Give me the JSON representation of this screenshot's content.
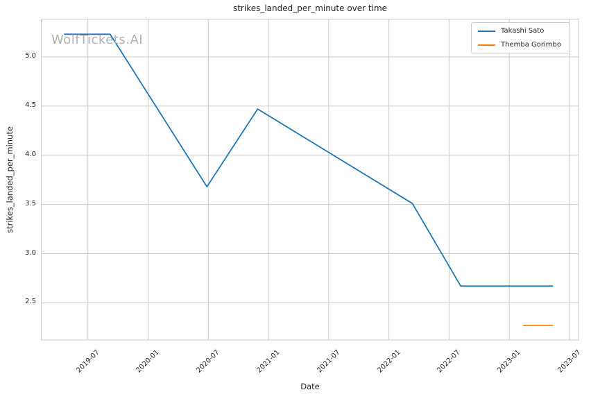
{
  "watermark": {
    "text": "WolfTickets.AI",
    "color": "#b2b2b2"
  },
  "chart_data": {
    "type": "line",
    "title": "strikes_landed_per_minute over time",
    "xlabel": "Date",
    "ylabel": "strikes_landed_per_minute",
    "grid": true,
    "legend_position": "upper right",
    "xlim_years": [
      2019.113,
      2023.575
    ],
    "ylim": [
      2.122,
      5.384
    ],
    "x_ticks": [
      {
        "pos": 2019.5,
        "label": "2019-07"
      },
      {
        "pos": 2020.0,
        "label": "2020-01"
      },
      {
        "pos": 2020.5,
        "label": "2020-07"
      },
      {
        "pos": 2021.0,
        "label": "2021-01"
      },
      {
        "pos": 2021.5,
        "label": "2021-07"
      },
      {
        "pos": 2022.0,
        "label": "2022-01"
      },
      {
        "pos": 2022.5,
        "label": "2022-07"
      },
      {
        "pos": 2023.0,
        "label": "2023-01"
      },
      {
        "pos": 2023.5,
        "label": "2023-07"
      }
    ],
    "y_ticks": [
      {
        "pos": 2.5,
        "label": "2.5"
      },
      {
        "pos": 3.0,
        "label": "3.0"
      },
      {
        "pos": 3.5,
        "label": "3.5"
      },
      {
        "pos": 4.0,
        "label": "4.0"
      },
      {
        "pos": 4.5,
        "label": "4.5"
      },
      {
        "pos": 5.0,
        "label": "5.0"
      }
    ],
    "series": [
      {
        "name": "Takashi Sato",
        "color": "#1f77b4",
        "points": [
          {
            "date": "2019-04-20",
            "x_year": 2019.301,
            "y": 5.23
          },
          {
            "date": "2019-09-07",
            "x_year": 2019.685,
            "y": 5.23
          },
          {
            "date": "2020-06-27",
            "x_year": 2020.489,
            "y": 3.68
          },
          {
            "date": "2020-11-28",
            "x_year": 2020.91,
            "y": 4.47
          },
          {
            "date": "2022-03-12",
            "x_year": 2022.195,
            "y": 3.51
          },
          {
            "date": "2022-08-06",
            "x_year": 2022.597,
            "y": 2.67
          },
          {
            "date": "2023-05-13",
            "x_year": 2023.364,
            "y": 2.67
          }
        ]
      },
      {
        "name": "Themba Gorimbo",
        "color": "#ff7f0e",
        "points": [
          {
            "date": "2023-02-11",
            "x_year": 2023.115,
            "y": 2.27
          },
          {
            "date": "2023-05-13",
            "x_year": 2023.364,
            "y": 2.27
          }
        ]
      }
    ],
    "colors": {
      "grid": "#cccccc",
      "spine": "#cccccc",
      "text": "#262626",
      "background": "#ffffff"
    }
  }
}
